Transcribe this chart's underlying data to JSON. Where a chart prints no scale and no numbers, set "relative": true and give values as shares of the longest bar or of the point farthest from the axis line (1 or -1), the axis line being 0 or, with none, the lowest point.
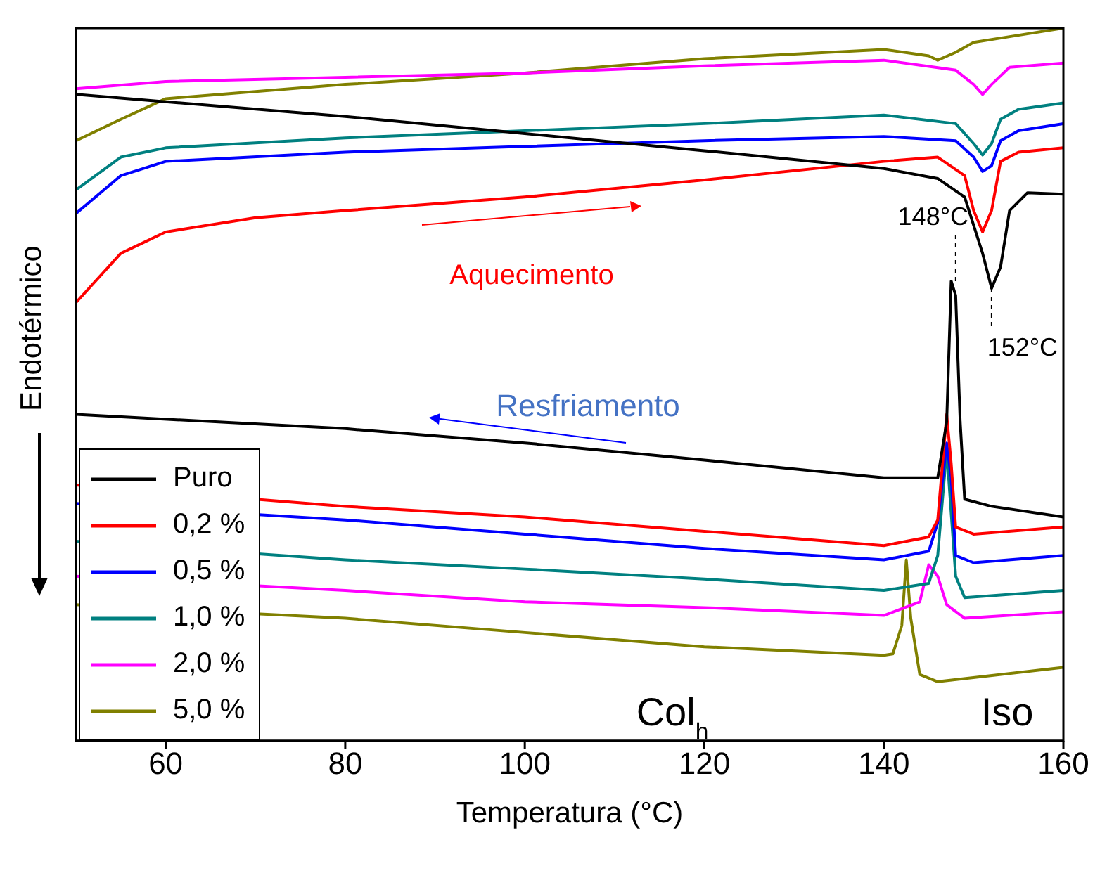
{
  "chart_data": {
    "type": "line",
    "relative": true,
    "xlabel": "Temperatura (°C)",
    "ylabel": "Endotérmico",
    "xlim": [
      50,
      160
    ],
    "xticks": [
      60,
      80,
      100,
      120,
      140,
      160
    ],
    "legend": "bottom left",
    "marker": "none",
    "line_style": "solid",
    "annotations": [
      "Aquecimento",
      "Resfriamento",
      "Col$_{h}$",
      "Iso",
      {
        "text": "148°C",
        "x": 148,
        "y": 0.645
      },
      {
        "text": "152°C",
        "x": 152,
        "y": 0.635
      }
    ],
    "series": [
      {
        "color": "#000000",
        "x": [
          50,
          80,
          100,
          120,
          140,
          146,
          149,
          151,
          152,
          153,
          154,
          156,
          160
        ],
        "values": [
          0.907,
          0.876,
          0.852,
          0.828,
          0.803,
          0.789,
          0.763,
          0.684,
          0.635,
          0.665,
          0.744,
          0.769,
          0.767
        ]
      },
      {
        "color": "#ff0000",
        "x": [
          50,
          55,
          60,
          70,
          80,
          100,
          120,
          140,
          146,
          149,
          150,
          151,
          152,
          153,
          155,
          160
        ],
        "values": [
          0.615,
          0.684,
          0.714,
          0.734,
          0.744,
          0.763,
          0.787,
          0.813,
          0.819,
          0.793,
          0.744,
          0.714,
          0.744,
          0.813,
          0.826,
          0.832
        ]
      },
      {
        "color": "#0000ff",
        "x": [
          50,
          55,
          60,
          80,
          100,
          120,
          140,
          148,
          150,
          151,
          152,
          153,
          155,
          160
        ],
        "values": [
          0.74,
          0.793,
          0.813,
          0.826,
          0.834,
          0.842,
          0.848,
          0.842,
          0.819,
          0.799,
          0.807,
          0.842,
          0.856,
          0.866
        ]
      },
      {
        "color": "#008080",
        "x": [
          50,
          55,
          60,
          80,
          100,
          120,
          140,
          148,
          150,
          151,
          152,
          153,
          155,
          160
        ],
        "values": [
          0.773,
          0.819,
          0.832,
          0.846,
          0.856,
          0.866,
          0.878,
          0.866,
          0.838,
          0.822,
          0.838,
          0.872,
          0.886,
          0.895
        ]
      },
      {
        "color": "#ff00ff",
        "x": [
          50,
          60,
          80,
          100,
          120,
          140,
          148,
          150,
          151,
          152,
          154,
          160
        ],
        "values": [
          0.915,
          0.925,
          0.931,
          0.937,
          0.947,
          0.955,
          0.941,
          0.921,
          0.907,
          0.921,
          0.945,
          0.951
        ]
      },
      {
        "color": "#808000",
        "x": [
          50,
          55,
          60,
          70,
          80,
          100,
          120,
          140,
          145,
          146,
          148,
          150,
          155,
          160
        ],
        "values": [
          0.842,
          0.872,
          0.901,
          0.911,
          0.921,
          0.937,
          0.957,
          0.97,
          0.961,
          0.955,
          0.966,
          0.98,
          0.99,
          1
        ]
      },
      {
        "name": "Puro",
        "color": "#000000",
        "x": [
          50,
          80,
          100,
          120,
          140,
          146,
          147,
          147.5,
          148,
          148.5,
          149,
          152,
          160
        ],
        "values": [
          0.458,
          0.438,
          0.418,
          0.394,
          0.369,
          0.369,
          0.448,
          0.645,
          0.625,
          0.448,
          0.339,
          0.329,
          0.314
        ]
      },
      {
        "name": "0,2 %",
        "color": "#ff0000",
        "x": [
          50,
          80,
          100,
          120,
          140,
          145,
          146,
          147,
          147.5,
          148,
          150,
          160
        ],
        "values": [
          0.359,
          0.329,
          0.314,
          0.294,
          0.274,
          0.286,
          0.31,
          0.458,
          0.389,
          0.3,
          0.29,
          0.3
        ]
      },
      {
        "name": "0,5 %",
        "color": "#0000ff",
        "x": [
          50,
          80,
          100,
          120,
          140,
          145,
          146,
          147,
          147.5,
          148,
          150,
          160
        ],
        "values": [
          0.333,
          0.31,
          0.29,
          0.27,
          0.254,
          0.266,
          0.306,
          0.418,
          0.369,
          0.26,
          0.25,
          0.26
        ]
      },
      {
        "name": "1,0 %",
        "color": "#008080",
        "x": [
          50,
          80,
          100,
          120,
          140,
          145,
          146,
          147,
          148,
          149,
          160
        ],
        "values": [
          0.28,
          0.254,
          0.241,
          0.227,
          0.211,
          0.221,
          0.26,
          0.408,
          0.231,
          0.201,
          0.211
        ]
      },
      {
        "name": "2,0 %",
        "color": "#ff00ff",
        "x": [
          50,
          80,
          100,
          120,
          140,
          144,
          145,
          146,
          147,
          149,
          160
        ],
        "values": [
          0.231,
          0.211,
          0.195,
          0.187,
          0.176,
          0.195,
          0.247,
          0.231,
          0.191,
          0.172,
          0.181
        ]
      },
      {
        "name": "5,0 %",
        "color": "#808000",
        "x": [
          50,
          80,
          100,
          120,
          140,
          141,
          142,
          142.5,
          143,
          144,
          146,
          160
        ],
        "values": [
          0.191,
          0.172,
          0.152,
          0.132,
          0.12,
          0.122,
          0.162,
          0.254,
          0.172,
          0.093,
          0.083,
          0.103
        ]
      }
    ]
  }
}
